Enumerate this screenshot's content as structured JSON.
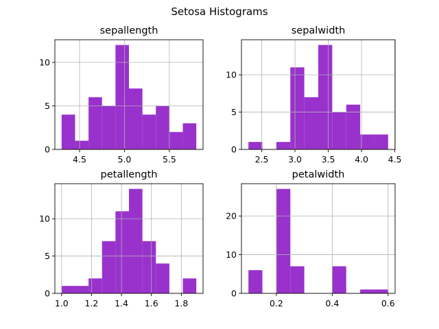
{
  "suptitle": "Setosa Histograms",
  "colors": {
    "bar": "#9932CC",
    "grid": "#b0b0b0",
    "axis": "#000000"
  },
  "chart_data": [
    {
      "type": "bar",
      "title": "sepallength",
      "bin_edges": [
        4.3,
        4.45,
        4.6,
        4.75,
        4.9,
        5.05,
        5.2,
        5.35,
        5.5,
        5.65,
        5.8
      ],
      "values": [
        4,
        1,
        6,
        5,
        12,
        7,
        4,
        5,
        2,
        3
      ],
      "xlim": [
        4.225,
        5.875
      ],
      "ylim": [
        0,
        12.6
      ],
      "xticks": [
        4.5,
        5.0,
        5.5
      ],
      "xtick_labels": [
        "4.5",
        "5.0",
        "5.5"
      ],
      "yticks": [
        0,
        5,
        10
      ],
      "ytick_labels": [
        "0",
        "5",
        "10"
      ],
      "grid": true
    },
    {
      "type": "bar",
      "title": "sepalwidth",
      "bin_edges": [
        2.3,
        2.51,
        2.72,
        2.93,
        3.14,
        3.35,
        3.56,
        3.77,
        3.98,
        4.19,
        4.4
      ],
      "values": [
        1,
        0,
        1,
        11,
        7,
        14,
        5,
        6,
        2,
        2
      ],
      "xlim": [
        2.195,
        4.505
      ],
      "ylim": [
        0,
        14.7
      ],
      "xticks": [
        2.5,
        3.0,
        3.5,
        4.0,
        4.5
      ],
      "xtick_labels": [
        "2.5",
        "3.0",
        "3.5",
        "4.0",
        "4.5"
      ],
      "yticks": [
        0,
        5,
        10
      ],
      "ytick_labels": [
        "0",
        "5",
        "10"
      ],
      "grid": true
    },
    {
      "type": "bar",
      "title": "petallength",
      "bin_edges": [
        1.0,
        1.09,
        1.18,
        1.27,
        1.36,
        1.45,
        1.54,
        1.63,
        1.72,
        1.81,
        1.9
      ],
      "values": [
        1,
        1,
        2,
        7,
        11,
        14,
        7,
        4,
        0,
        2
      ],
      "xlim": [
        0.955,
        1.945
      ],
      "ylim": [
        0,
        14.7
      ],
      "xticks": [
        1.0,
        1.2,
        1.4,
        1.6,
        1.8
      ],
      "xtick_labels": [
        "1.0",
        "1.2",
        "1.4",
        "1.6",
        "1.8"
      ],
      "yticks": [
        0,
        5,
        10
      ],
      "ytick_labels": [
        "0",
        "5",
        "10"
      ],
      "grid": true
    },
    {
      "type": "bar",
      "title": "petalwidth",
      "bin_edges": [
        0.1,
        0.15,
        0.2,
        0.25,
        0.3,
        0.35,
        0.4,
        0.45,
        0.5,
        0.55,
        0.6
      ],
      "values": [
        6,
        0,
        27,
        7,
        0,
        0,
        7,
        0,
        1,
        1
      ],
      "xlim": [
        0.075,
        0.625
      ],
      "ylim": [
        0,
        28.35
      ],
      "xticks": [
        0.2,
        0.4,
        0.6
      ],
      "xtick_labels": [
        "0.2",
        "0.4",
        "0.6"
      ],
      "yticks": [
        0,
        10,
        20
      ],
      "ytick_labels": [
        "0",
        "10",
        "20"
      ],
      "grid": true
    }
  ]
}
